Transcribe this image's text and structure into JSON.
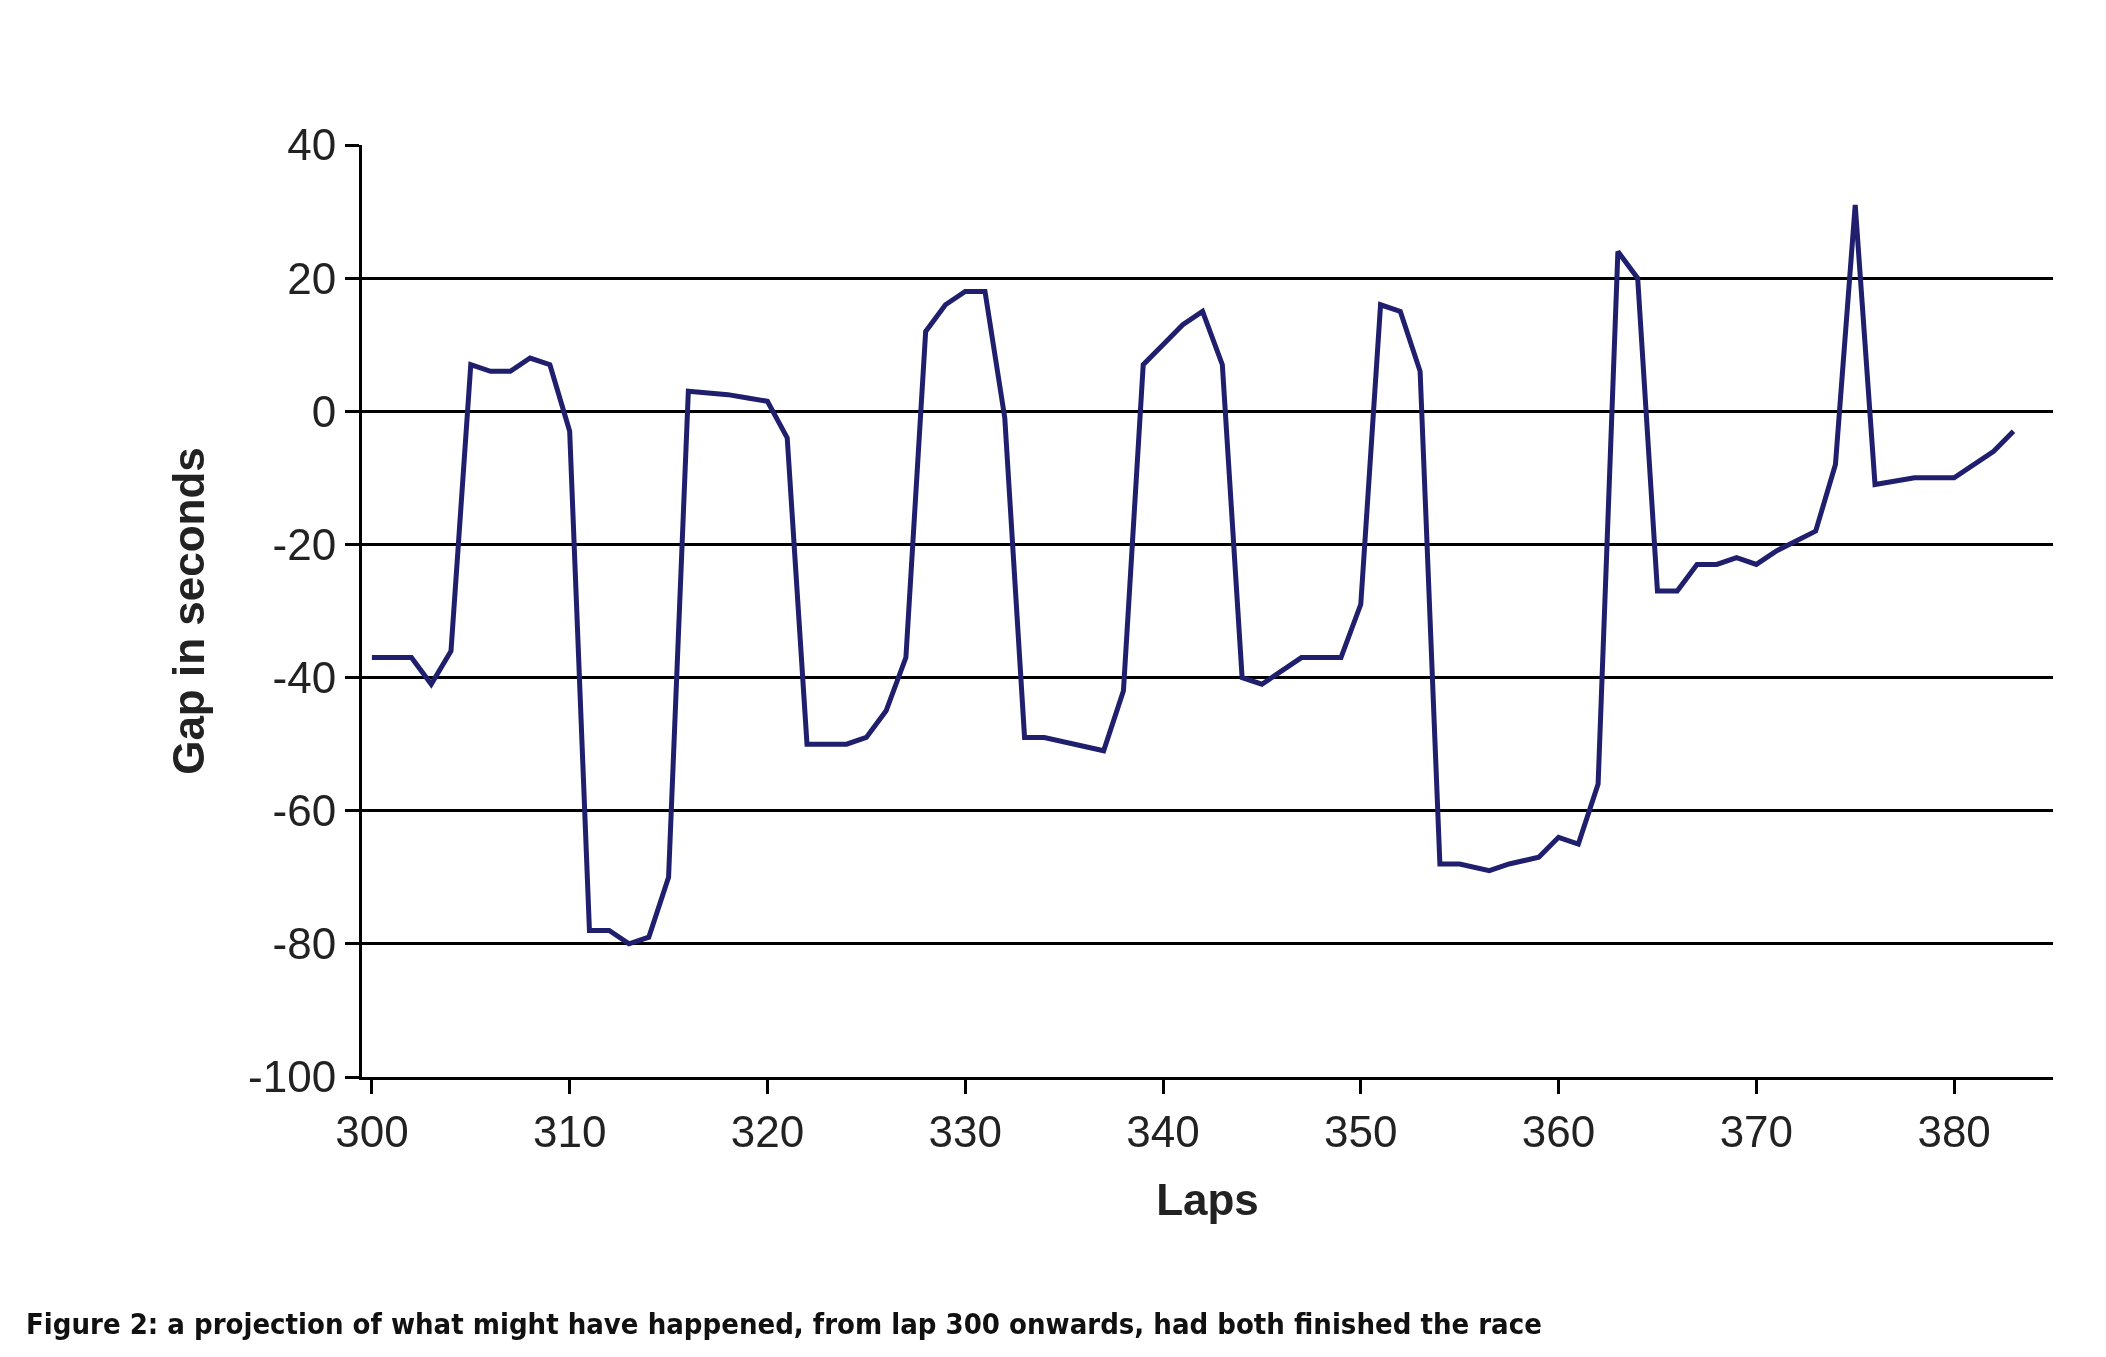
{
  "chart_data": {
    "type": "line",
    "xlabel": "Laps",
    "ylabel": "Gap in seconds",
    "annotations": [
      "Figure 2: a projection of what might have happened, from lap 300 onwards, had both finished the race"
    ],
    "x": [
      300,
      302,
      303,
      304,
      305,
      306,
      307,
      308,
      309,
      310,
      311,
      312,
      313,
      314,
      315,
      316,
      318,
      319,
      320,
      321,
      322,
      324,
      325,
      326,
      327,
      328,
      329,
      330,
      331,
      332,
      333,
      334,
      337,
      338,
      339,
      340,
      341,
      342,
      343,
      344,
      345,
      347,
      349,
      350,
      351,
      352,
      353,
      354,
      355,
      356.5,
      357.5,
      359,
      360,
      361,
      362,
      363,
      364,
      365,
      366,
      367,
      368,
      369,
      370,
      371,
      373,
      374,
      375,
      376,
      378,
      380,
      382,
      383
    ],
    "series": [
      {
        "color": "#1f1f6e",
        "values": [
          -37,
          -37,
          -41,
          -36,
          7,
          6,
          6,
          8,
          7,
          -3,
          -78,
          -78,
          -80,
          -79,
          -70,
          3,
          2.5,
          2,
          1.5,
          -4,
          -50,
          -50,
          -49,
          -45,
          -37,
          12,
          16,
          18,
          18,
          -1,
          -49,
          -49,
          -51,
          -42,
          7,
          10,
          13,
          15,
          7,
          -40,
          -41,
          -37,
          -37,
          -29,
          16,
          15,
          6,
          -68,
          -68,
          -69,
          -68,
          -67,
          -64,
          -65,
          -56,
          24,
          20,
          -27,
          -27,
          -23,
          -23,
          -22,
          -23,
          -21,
          -18,
          -8,
          31,
          -11,
          -10,
          -10,
          -6,
          -3
        ]
      }
    ],
    "xlim": [
      299.5,
      385
    ],
    "xticks": [
      300,
      310,
      320,
      330,
      340,
      350,
      360,
      370,
      380
    ],
    "ylim": [
      -100,
      40
    ],
    "yticks": [
      -100,
      -80,
      -60,
      -40,
      -20,
      0,
      20,
      40
    ],
    "grid": "y",
    "legend": false,
    "marker": "none",
    "line_style": "solid"
  }
}
